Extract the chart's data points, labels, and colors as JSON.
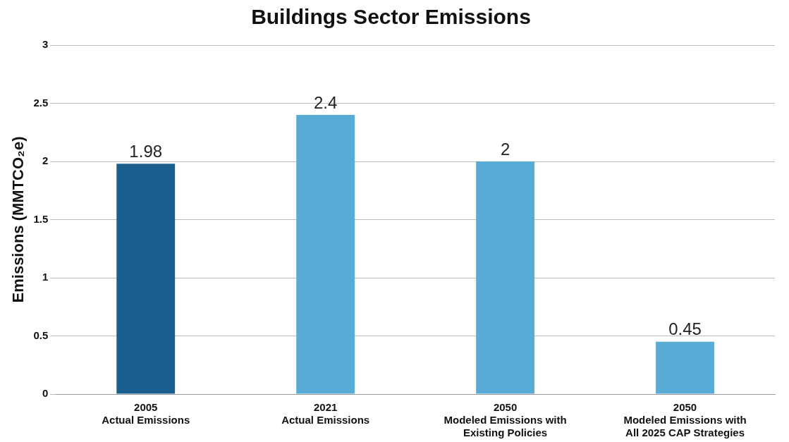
{
  "chart_data": {
    "type": "bar",
    "title": "Buildings Sector Emissions",
    "ylabel": "Emissions (MMTCO₂e)",
    "categories": [
      "2005\nActual Emissions",
      "2021\nActual Emissions",
      "2050\nModeled Emissions with\nExisting Policies",
      "2050\nModeled Emissions with\nAll 2025 CAP Strategies"
    ],
    "values": [
      1.98,
      2.4,
      2,
      0.45
    ],
    "colors": [
      "#1a5f8e",
      "#58acd6",
      "#58acd6",
      "#58acd6"
    ],
    "ylim": [
      0,
      3
    ],
    "yticks": [
      0,
      0.5,
      1,
      1.5,
      2,
      2.5,
      3
    ],
    "grid": "y",
    "data_labels": true
  }
}
